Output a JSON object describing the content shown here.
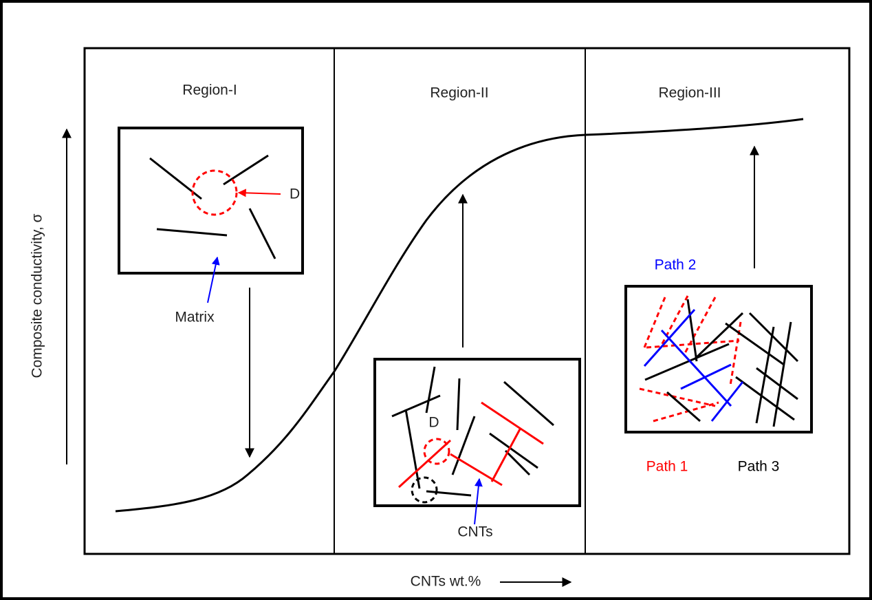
{
  "axes": {
    "x_label": "CNTs wt.%",
    "y_label": "Composite conductivity, σ"
  },
  "regions": [
    {
      "label": "Region-I",
      "annotations": [
        "D",
        "Matrix"
      ]
    },
    {
      "label": "Region-II",
      "annotations": [
        "D",
        "CNTs"
      ]
    },
    {
      "label": "Region-III",
      "annotations": [
        "Path 2",
        "Path 1",
        "Path 3"
      ]
    }
  ]
}
